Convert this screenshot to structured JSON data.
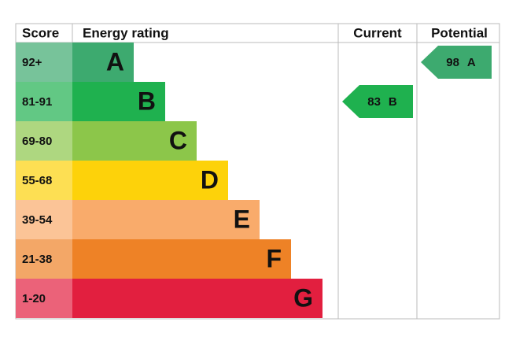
{
  "header": {
    "score": "Score",
    "rating": "Energy rating",
    "current": "Current",
    "potential": "Potential"
  },
  "bands": [
    {
      "score": "92+",
      "letter": "A",
      "color": "#3daa6f"
    },
    {
      "score": "81-91",
      "letter": "B",
      "color": "#1fb14f"
    },
    {
      "score": "69-80",
      "letter": "C",
      "color": "#8cc64a"
    },
    {
      "score": "55-68",
      "letter": "D",
      "color": "#fdd20a"
    },
    {
      "score": "39-54",
      "letter": "E",
      "color": "#f9ab6b"
    },
    {
      "score": "21-38",
      "letter": "F",
      "color": "#ee8226"
    },
    {
      "score": "1-20",
      "letter": "G",
      "color": "#e21f3f"
    }
  ],
  "current": {
    "value": "83",
    "letter": "B"
  },
  "potential": {
    "value": "98",
    "letter": "A"
  }
}
